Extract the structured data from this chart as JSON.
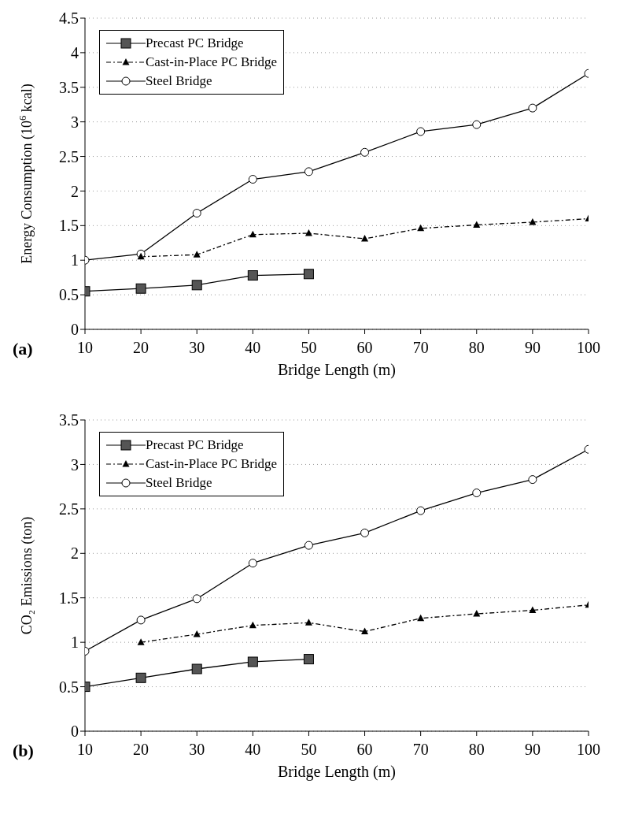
{
  "chart_data": [
    {
      "type": "line",
      "ylabel": "Energy Consumption (10$^{6}$ kcal)",
      "xlabel": "Bridge Length (m)",
      "annotations": [
        "(a)"
      ],
      "x": [
        10,
        20,
        30,
        40,
        50,
        60,
        70,
        80,
        90,
        100
      ],
      "xlim": [
        10,
        100
      ],
      "xticks": [
        10,
        20,
        30,
        40,
        50,
        60,
        70,
        80,
        90,
        100
      ],
      "ylim": [
        0,
        4.5
      ],
      "yticks": [
        0,
        0.5,
        1,
        1.5,
        2,
        2.5,
        3,
        3.5,
        4,
        4.5
      ],
      "grid": "y",
      "legend": "top left",
      "series": [
        {
          "name": "Precast PC Bridge",
          "color": "#000000",
          "marker": "square",
          "line_style": "solid",
          "values": [
            0.55,
            0.59,
            0.64,
            0.78,
            0.8,
            null,
            null,
            null,
            null,
            null
          ]
        },
        {
          "name": "Cast-in-Place PC Bridge",
          "color": "#000000",
          "marker": "triangle",
          "line_style": "dashed",
          "values": [
            null,
            1.05,
            1.08,
            1.37,
            1.39,
            1.31,
            1.46,
            1.51,
            1.55,
            1.6
          ]
        },
        {
          "name": "Steel Bridge",
          "color": "#000000",
          "marker": "circle",
          "line_style": "solid",
          "values": [
            1.0,
            1.09,
            1.68,
            2.17,
            2.28,
            2.56,
            2.86,
            2.96,
            3.2,
            3.7
          ]
        }
      ]
    },
    {
      "type": "line",
      "ylabel": "CO₂ Emissions (ton)",
      "xlabel": "Bridge Length (m)",
      "annotations": [
        "(b)"
      ],
      "x": [
        10,
        20,
        30,
        40,
        50,
        60,
        70,
        80,
        90,
        100
      ],
      "xlim": [
        10,
        100
      ],
      "xticks": [
        10,
        20,
        30,
        40,
        50,
        60,
        70,
        80,
        90,
        100
      ],
      "ylim": [
        0,
        3.5
      ],
      "yticks": [
        0,
        0.5,
        1,
        1.5,
        2,
        2.5,
        3,
        3.5
      ],
      "grid": "y",
      "legend": "top left",
      "series": [
        {
          "name": "Precast PC Bridge",
          "color": "#000000",
          "marker": "square",
          "line_style": "solid",
          "values": [
            0.5,
            0.6,
            0.7,
            0.78,
            0.81,
            null,
            null,
            null,
            null,
            null
          ]
        },
        {
          "name": "Cast-in-Place PC Bridge",
          "color": "#000000",
          "marker": "triangle",
          "line_style": "dashed",
          "values": [
            null,
            1.0,
            1.09,
            1.19,
            1.22,
            1.12,
            1.27,
            1.32,
            1.36,
            1.42
          ]
        },
        {
          "name": "Steel Bridge",
          "color": "#000000",
          "marker": "circle",
          "line_style": "solid",
          "values": [
            0.9,
            1.25,
            1.49,
            1.89,
            2.09,
            2.23,
            2.48,
            2.68,
            2.83,
            3.17
          ]
        }
      ]
    }
  ]
}
